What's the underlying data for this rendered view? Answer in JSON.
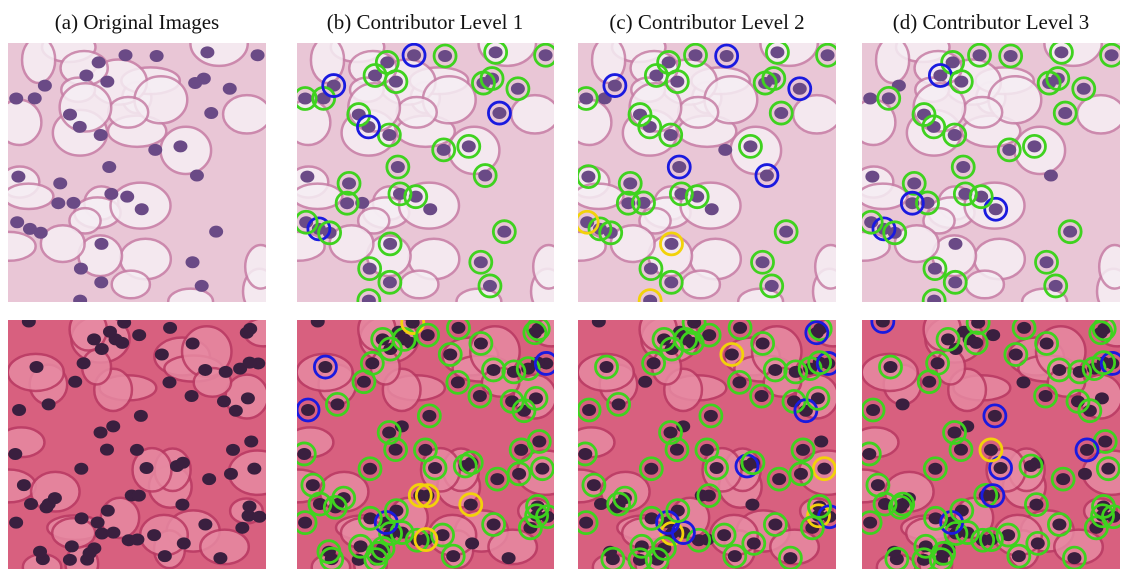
{
  "columns": [
    {
      "label": "(a) Original Images"
    },
    {
      "label": "(b) Contributor Level 1"
    },
    {
      "label": "(c) Contributor Level 2"
    },
    {
      "label": "(d) Contributor Level 3"
    }
  ]
}
